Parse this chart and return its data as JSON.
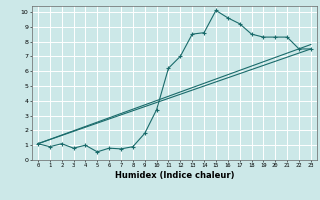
{
  "xlabel": "Humidex (Indice chaleur)",
  "bg_color": "#cce8e8",
  "grid_color": "#ffffff",
  "line_color": "#1a6b6b",
  "xlim": [
    -0.5,
    23.5
  ],
  "ylim": [
    0,
    10.4
  ],
  "xticks": [
    0,
    1,
    2,
    3,
    4,
    5,
    6,
    7,
    8,
    9,
    10,
    11,
    12,
    13,
    14,
    15,
    16,
    17,
    18,
    19,
    20,
    21,
    22,
    23
  ],
  "yticks": [
    0,
    1,
    2,
    3,
    4,
    5,
    6,
    7,
    8,
    9,
    10
  ],
  "curve_x": [
    0,
    1,
    2,
    3,
    4,
    5,
    6,
    7,
    8,
    9,
    10,
    11,
    12,
    13,
    14,
    15,
    16,
    17,
    18,
    19,
    20,
    21,
    22,
    23
  ],
  "curve_y": [
    1.1,
    0.9,
    1.1,
    0.8,
    1.0,
    0.55,
    0.8,
    0.75,
    0.9,
    1.8,
    3.4,
    6.2,
    7.0,
    8.5,
    8.6,
    10.1,
    9.6,
    9.2,
    8.5,
    8.3,
    8.3,
    8.3,
    7.5,
    7.5
  ],
  "line1": [
    [
      0,
      1.1
    ],
    [
      23,
      7.5
    ]
  ],
  "line2": [
    [
      0,
      1.1
    ],
    [
      23,
      7.8
    ]
  ]
}
